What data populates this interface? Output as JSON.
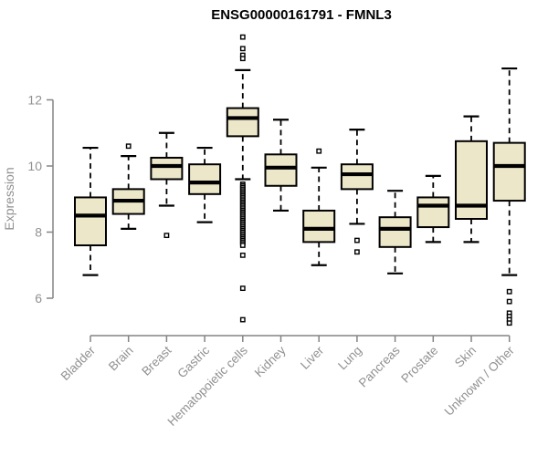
{
  "chart_data": {
    "type": "box",
    "title": "ENSG00000161791 - FMNL3",
    "ylabel": "Expression",
    "xlabel": "",
    "yticks": [
      6,
      8,
      10,
      12
    ],
    "ylim": [
      5.1,
      14.1
    ],
    "grid": false,
    "legend": "none",
    "categories": [
      "Bladder",
      "Brain",
      "Breast",
      "Gastric",
      "Hematopoietic cells",
      "Kidney",
      "Liver",
      "Lung",
      "Pancreas",
      "Prostate",
      "Skin",
      "Unknown / Other"
    ],
    "series": [
      {
        "category": "Bladder",
        "whisker_low": 6.7,
        "q1": 7.6,
        "median": 8.5,
        "q3": 9.05,
        "whisker_high": 10.55,
        "outliers": []
      },
      {
        "category": "Brain",
        "whisker_low": 8.1,
        "q1": 8.55,
        "median": 8.95,
        "q3": 9.3,
        "whisker_high": 10.3,
        "outliers": [
          10.6
        ]
      },
      {
        "category": "Breast",
        "whisker_low": 8.8,
        "q1": 9.6,
        "median": 10.0,
        "q3": 10.25,
        "whisker_high": 11.0,
        "outliers": [
          7.9
        ]
      },
      {
        "category": "Gastric",
        "whisker_low": 8.3,
        "q1": 9.15,
        "median": 9.5,
        "q3": 10.05,
        "whisker_high": 10.55,
        "outliers": []
      },
      {
        "category": "Hematopoietic cells",
        "whisker_low": 9.6,
        "q1": 10.9,
        "median": 11.45,
        "q3": 11.75,
        "whisker_high": 12.9,
        "outliers": [
          13.9,
          13.55,
          13.35,
          13.25,
          9.45,
          9.4,
          9.35,
          9.3,
          9.25,
          9.2,
          9.15,
          9.1,
          9.05,
          9.0,
          8.95,
          8.9,
          8.85,
          8.8,
          8.75,
          8.7,
          8.65,
          8.6,
          8.55,
          8.5,
          8.45,
          8.4,
          8.35,
          8.3,
          8.25,
          8.2,
          8.15,
          8.1,
          8.05,
          8.0,
          7.95,
          7.9,
          7.85,
          7.8,
          7.75,
          7.7,
          7.65,
          7.6,
          7.3,
          6.3,
          5.35
        ]
      },
      {
        "category": "Kidney",
        "whisker_low": 8.65,
        "q1": 9.4,
        "median": 9.95,
        "q3": 10.35,
        "whisker_high": 11.4,
        "outliers": []
      },
      {
        "category": "Liver",
        "whisker_low": 7.0,
        "q1": 7.7,
        "median": 8.1,
        "q3": 8.65,
        "whisker_high": 9.95,
        "outliers": [
          10.45
        ]
      },
      {
        "category": "Lung",
        "whisker_low": 8.25,
        "q1": 9.3,
        "median": 9.75,
        "q3": 10.05,
        "whisker_high": 11.1,
        "outliers": [
          7.75,
          7.4
        ]
      },
      {
        "category": "Pancreas",
        "whisker_low": 6.75,
        "q1": 7.55,
        "median": 8.1,
        "q3": 8.45,
        "whisker_high": 9.25,
        "outliers": []
      },
      {
        "category": "Prostate",
        "whisker_low": 7.7,
        "q1": 8.15,
        "median": 8.8,
        "q3": 9.05,
        "whisker_high": 9.7,
        "outliers": []
      },
      {
        "category": "Skin",
        "whisker_low": 7.7,
        "q1": 8.4,
        "median": 8.8,
        "q3": 10.75,
        "whisker_high": 11.5,
        "outliers": []
      },
      {
        "category": "Unknown / Other",
        "whisker_low": 6.7,
        "q1": 8.95,
        "median": 10.0,
        "q3": 10.7,
        "whisker_high": 12.95,
        "outliers": [
          6.2,
          5.9,
          5.55,
          5.45,
          5.35,
          5.25
        ]
      }
    ],
    "colors": {
      "box_fill": "#EDE7C9",
      "box_border": "#000000",
      "median": "#000000",
      "whisker": "#000000",
      "outlier_stroke": "#000000",
      "outlier_fill": "#ffffff",
      "axis_line": "#848484",
      "axis_text": "#919191",
      "title": "#000000",
      "background": "#ffffff"
    }
  }
}
